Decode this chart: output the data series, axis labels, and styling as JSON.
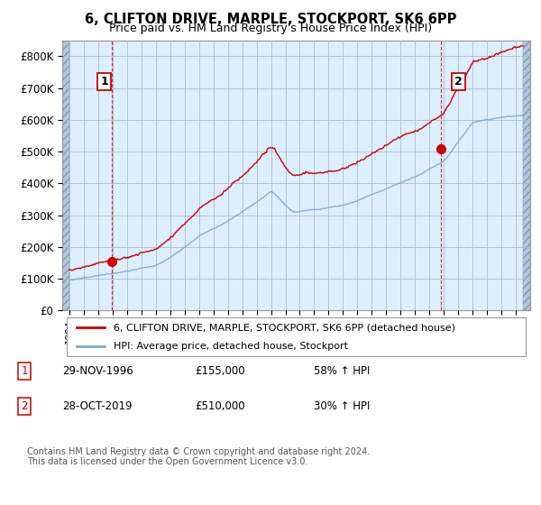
{
  "title": "6, CLIFTON DRIVE, MARPLE, STOCKPORT, SK6 6PP",
  "subtitle": "Price paid vs. HM Land Registry's House Price Index (HPI)",
  "ylim": [
    0,
    850000
  ],
  "yticks": [
    0,
    100000,
    200000,
    300000,
    400000,
    500000,
    600000,
    700000,
    800000
  ],
  "ytick_labels": [
    "£0",
    "£100K",
    "£200K",
    "£300K",
    "£400K",
    "£500K",
    "£600K",
    "£700K",
    "£800K"
  ],
  "sale1_x": 1996.92,
  "sale1_y": 155000,
  "sale2_x": 2019.83,
  "sale2_y": 510000,
  "hpi_color": "#7faacc",
  "price_color": "#cc0000",
  "bg_color": "#ddeeff",
  "hatch_color": "#b0c8dd",
  "grid_color": "#aabbcc",
  "legend1_text": "6, CLIFTON DRIVE, MARPLE, STOCKPORT, SK6 6PP (detached house)",
  "legend2_text": "HPI: Average price, detached house, Stockport",
  "note1_label": "1",
  "note1_date": "29-NOV-1996",
  "note1_price": "£155,000",
  "note1_hpi": "58% ↑ HPI",
  "note2_label": "2",
  "note2_date": "28-OCT-2019",
  "note2_price": "£510,000",
  "note2_hpi": "30% ↑ HPI",
  "footer": "Contains HM Land Registry data © Crown copyright and database right 2024.\nThis data is licensed under the Open Government Licence v3.0.",
  "xlim_left": 1993.5,
  "xlim_right": 2026.0,
  "plot_start": 1994.0,
  "plot_end": 2025.5
}
